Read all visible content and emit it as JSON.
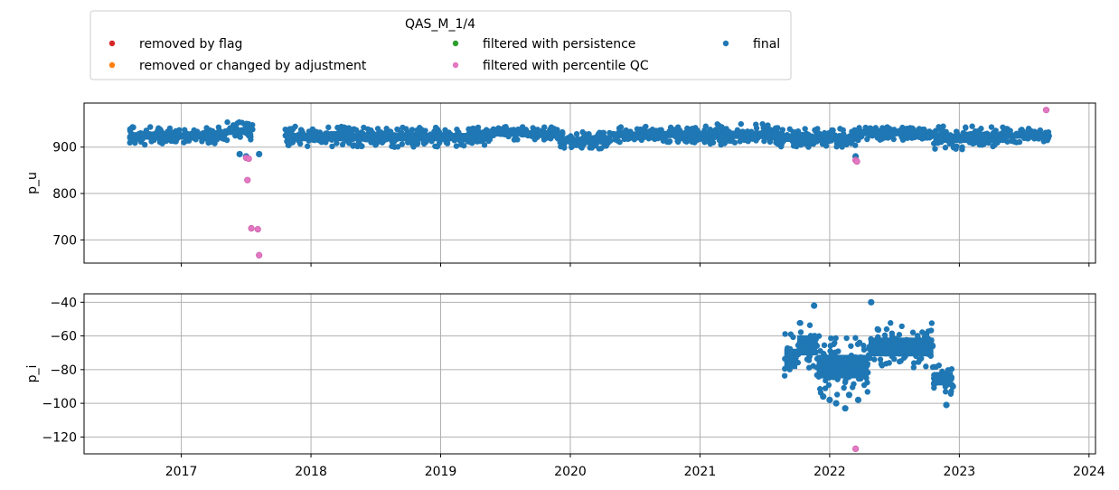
{
  "chart_data": [
    {
      "type": "scatter",
      "ylabel": "p_u",
      "x_axis": {
        "unit": "year",
        "range": [
          2016.25,
          2024.05
        ],
        "ticks": [
          "2017",
          "2018",
          "2019",
          "2020",
          "2021",
          "2022",
          "2023",
          "2024"
        ],
        "tick_labels_shown": false
      },
      "ylim": [
        650,
        995
      ],
      "yticks": [
        700,
        800,
        900
      ],
      "grid": true,
      "series": [
        {
          "name": "final",
          "color": "#1f77b4",
          "dense_band": {
            "segments": [
              {
                "x_start": 2016.6,
                "x_end": 2017.35,
                "low": 905,
                "high": 945
              },
              {
                "x_start": 2017.35,
                "x_end": 2017.55,
                "low": 915,
                "high": 955
              },
              {
                "x_start": 2017.8,
                "x_end": 2019.4,
                "low": 900,
                "high": 945
              },
              {
                "x_start": 2019.4,
                "x_end": 2019.9,
                "low": 915,
                "high": 945
              },
              {
                "x_start": 2019.9,
                "x_end": 2020.3,
                "low": 895,
                "high": 935
              },
              {
                "x_start": 2020.3,
                "x_end": 2021.0,
                "low": 910,
                "high": 945
              },
              {
                "x_start": 2021.0,
                "x_end": 2021.6,
                "low": 905,
                "high": 950
              },
              {
                "x_start": 2021.6,
                "x_end": 2022.2,
                "low": 900,
                "high": 940
              },
              {
                "x_start": 2022.2,
                "x_end": 2022.8,
                "low": 915,
                "high": 945
              },
              {
                "x_start": 2022.8,
                "x_end": 2023.35,
                "low": 895,
                "high": 945
              },
              {
                "x_start": 2023.35,
                "x_end": 2023.7,
                "low": 910,
                "high": 940
              }
            ]
          },
          "points": [
            [
              2017.45,
              885
            ],
            [
              2017.6,
              885
            ],
            [
              2017.5,
              880
            ],
            [
              2022.2,
              880
            ]
          ]
        },
        {
          "name": "filtered with percentile QC",
          "color": "#e377c2",
          "points": [
            [
              2017.5,
              877
            ],
            [
              2017.52,
              875
            ],
            [
              2017.51,
              829
            ],
            [
              2017.54,
              725
            ],
            [
              2017.59,
              723
            ],
            [
              2017.6,
              667
            ],
            [
              2022.2,
              872
            ],
            [
              2022.21,
              869
            ],
            [
              2023.67,
              980
            ]
          ]
        }
      ]
    },
    {
      "type": "scatter",
      "ylabel": "p_i",
      "x_axis": {
        "unit": "year",
        "range": [
          2016.25,
          2024.05
        ],
        "ticks": [
          "2017",
          "2018",
          "2019",
          "2020",
          "2021",
          "2022",
          "2023",
          "2024"
        ]
      },
      "ylim": [
        -130,
        -35
      ],
      "yticks": [
        -120,
        -100,
        -80,
        -60,
        -40
      ],
      "grid": true,
      "series": [
        {
          "name": "final",
          "color": "#1f77b4",
          "dense_band": {
            "segments": [
              {
                "x_start": 2021.65,
                "x_end": 2021.75,
                "low": -88,
                "high": -58
              },
              {
                "x_start": 2021.75,
                "x_end": 2021.9,
                "low": -80,
                "high": -50
              },
              {
                "x_start": 2021.9,
                "x_end": 2022.3,
                "low": -95,
                "high": -60
              },
              {
                "x_start": 2022.3,
                "x_end": 2022.8,
                "low": -80,
                "high": -52
              },
              {
                "x_start": 2022.8,
                "x_end": 2022.95,
                "low": -95,
                "high": -75
              }
            ]
          },
          "points": [
            [
              2021.88,
              -42
            ],
            [
              2022.32,
              -40
            ],
            [
              2022.05,
              -100
            ],
            [
              2022.0,
              -98
            ],
            [
              2022.12,
              -103
            ],
            [
              2022.15,
              -95
            ],
            [
              2022.6,
              -70
            ],
            [
              2022.9,
              -101
            ],
            [
              2022.95,
              -90
            ],
            [
              2022.22,
              -98
            ],
            [
              2021.95,
              -96
            ]
          ]
        },
        {
          "name": "filtered with percentile QC",
          "color": "#e377c2",
          "points": [
            [
              2022.2,
              -127
            ]
          ]
        }
      ]
    }
  ],
  "legend": {
    "title": "QAS_M_1/4",
    "placement": "top-left, above the plots",
    "entries": [
      {
        "label": "removed by flag",
        "color": "#d62728"
      },
      {
        "label": "removed or changed by adjustment",
        "color": "#ff7f0e"
      },
      {
        "label": "filtered with persistence",
        "color": "#2ca02c"
      },
      {
        "label": "filtered with percentile QC",
        "color": "#e377c2"
      },
      {
        "label": "final",
        "color": "#1f77b4"
      }
    ]
  }
}
